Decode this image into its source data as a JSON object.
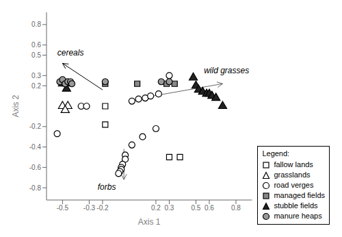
{
  "chart_data": {
    "type": "scatter",
    "xlabel": "Axis 1",
    "ylabel": "Axis 2",
    "xlim": [
      -0.62,
      0.92
    ],
    "ylim": [
      -0.92,
      0.92
    ],
    "xticks": [
      -0.5,
      -0.3,
      -0.2,
      0.2,
      0.3,
      0.5,
      0.6,
      0.8
    ],
    "yticks": [
      -0.8,
      -0.6,
      -0.4,
      -0.2,
      0.2,
      0.3,
      0.5,
      0.6,
      0.8
    ],
    "legend": "lower right",
    "legend_title": "Legend:",
    "series": [
      {
        "name": "fallow lands",
        "marker": "square",
        "color": "#ffffff",
        "values": [
          [
            -0.18,
            0.0
          ],
          [
            -0.18,
            -0.18
          ],
          [
            0.3,
            -0.5
          ],
          [
            0.38,
            -0.5
          ]
        ]
      },
      {
        "name": "grasslands",
        "marker": "triangle",
        "color": "#ffffff",
        "values": [
          [
            -0.5,
            0.0
          ],
          [
            -0.46,
            0.0
          ],
          [
            -0.48,
            -0.04
          ]
        ]
      },
      {
        "name": "road verges",
        "marker": "circle",
        "color": "#ffffff",
        "values": [
          [
            -0.54,
            -0.27
          ],
          [
            -0.36,
            0.0
          ],
          [
            -0.32,
            0.0
          ],
          [
            0.02,
            0.05
          ],
          [
            0.07,
            0.07
          ],
          [
            0.12,
            0.08
          ],
          [
            0.16,
            0.1
          ],
          [
            0.22,
            0.12
          ],
          [
            0.3,
            0.3
          ],
          [
            0.2,
            -0.22
          ],
          [
            0.1,
            -0.3
          ],
          [
            0.02,
            -0.38
          ],
          [
            -0.03,
            -0.48
          ],
          [
            -0.03,
            -0.52
          ],
          [
            -0.05,
            -0.57
          ],
          [
            -0.06,
            -0.6
          ],
          [
            -0.06,
            -0.62
          ],
          [
            -0.07,
            -0.64
          ],
          [
            -0.08,
            -0.66
          ]
        ]
      },
      {
        "name": "managed fields",
        "marker": "square",
        "color": "#888888",
        "values": [
          [
            -0.18,
            0.22
          ],
          [
            0.06,
            0.22
          ],
          [
            0.28,
            0.22
          ],
          [
            0.34,
            0.22
          ]
        ]
      },
      {
        "name": "stubble fields",
        "marker": "triangle",
        "color": "#222222",
        "values": [
          [
            -0.5,
            0.22
          ],
          [
            -0.47,
            0.22
          ],
          [
            -0.47,
            0.17
          ],
          [
            0.48,
            0.28
          ],
          [
            0.5,
            0.2
          ],
          [
            0.52,
            0.16
          ],
          [
            0.55,
            0.14
          ],
          [
            0.58,
            0.12
          ],
          [
            0.6,
            0.12
          ],
          [
            0.62,
            0.1
          ],
          [
            0.65,
            0.08
          ],
          [
            0.7,
            0.0
          ]
        ]
      },
      {
        "name": "manure heaps",
        "marker": "circle",
        "color": "#999999",
        "values": [
          [
            -0.52,
            0.24
          ],
          [
            -0.5,
            0.26
          ],
          [
            -0.48,
            0.22
          ],
          [
            -0.46,
            0.24
          ],
          [
            -0.44,
            0.24
          ],
          [
            -0.43,
            0.22
          ],
          [
            -0.18,
            0.24
          ],
          [
            0.24,
            0.24
          ],
          [
            0.3,
            0.24
          ]
        ]
      }
    ],
    "annotations": [
      {
        "text": "cereals",
        "color": "#000000",
        "from": [
          -0.2,
          0.16
        ],
        "to": [
          -0.5,
          0.42
        ],
        "at": [
          -0.44,
          0.5
        ]
      },
      {
        "text": "wild grasses",
        "color": "#666666",
        "from": [
          0.18,
          0.1
        ],
        "to": [
          0.7,
          0.22
        ],
        "at": [
          0.56,
          0.32
        ]
      },
      {
        "text": "forbs",
        "color": "#666666",
        "from": [
          -0.04,
          -0.42
        ],
        "to": [
          -0.04,
          -0.72
        ],
        "at": [
          -0.1,
          -0.76
        ]
      }
    ]
  }
}
